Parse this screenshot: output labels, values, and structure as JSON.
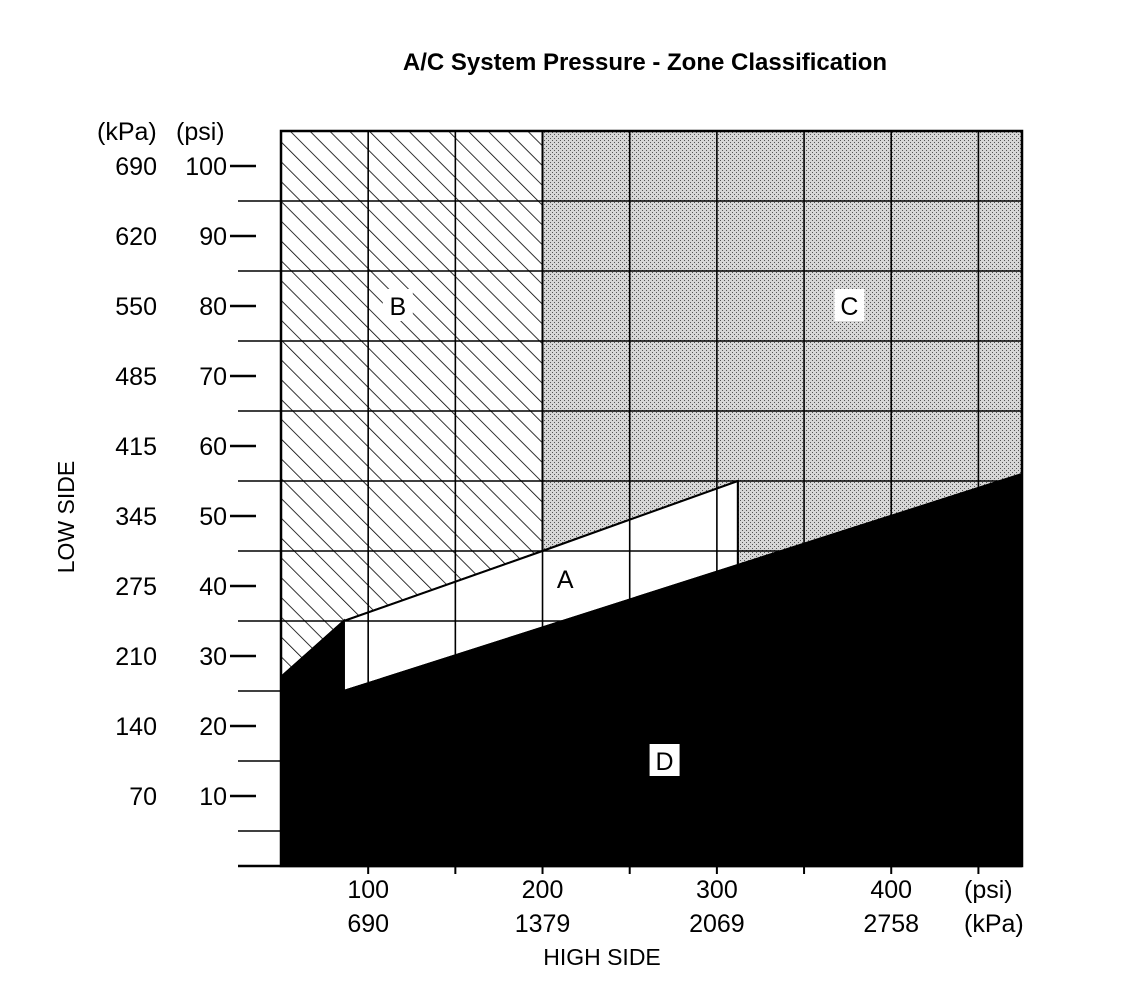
{
  "chart_data": {
    "type": "area",
    "title": "A/C System Pressure - Zone Classification",
    "xlabel": "HIGH SIDE",
    "ylabel": "LOW SIDE",
    "x_unit_primary": "(psi)",
    "x_unit_secondary": "(kPa)",
    "y_unit_primary": "(psi)",
    "y_unit_secondary": "(kPa)",
    "xlim": [
      50,
      475
    ],
    "ylim": [
      0,
      105
    ],
    "x_ticks": [
      {
        "psi": "100",
        "kpa": "690",
        "value": 100
      },
      {
        "psi": "200",
        "kpa": "1379",
        "value": 200
      },
      {
        "psi": "300",
        "kpa": "2069",
        "value": 300
      },
      {
        "psi": "400",
        "kpa": "2758",
        "value": 400
      }
    ],
    "y_ticks": [
      {
        "psi": "100",
        "kpa": "690",
        "value": 100
      },
      {
        "psi": "90",
        "kpa": "620",
        "value": 90
      },
      {
        "psi": "80",
        "kpa": "550",
        "value": 80
      },
      {
        "psi": "70",
        "kpa": "485",
        "value": 70
      },
      {
        "psi": "60",
        "kpa": "415",
        "value": 60
      },
      {
        "psi": "50",
        "kpa": "345",
        "value": 50
      },
      {
        "psi": "40",
        "kpa": "275",
        "value": 40
      },
      {
        "psi": "30",
        "kpa": "210",
        "value": 30
      },
      {
        "psi": "20",
        "kpa": "140",
        "value": 20
      },
      {
        "psi": "10",
        "kpa": "70",
        "value": 10
      }
    ],
    "x_gridlines": [
      100,
      150,
      200,
      250,
      300,
      350,
      400,
      450
    ],
    "y_gridlines": [
      5,
      15,
      25,
      35,
      45,
      55,
      65,
      75,
      85,
      95
    ],
    "zones": [
      {
        "name": "A",
        "fill": "white",
        "polygon": [
          [
            86,
            25
          ],
          [
            86,
            35
          ],
          [
            200,
            45
          ],
          [
            312,
            55
          ],
          [
            312,
            42
          ],
          [
            200,
            34
          ],
          [
            86,
            25
          ]
        ],
        "label_at": [
          213,
          41
        ]
      },
      {
        "name": "B",
        "fill": "diagonal-hatch",
        "polygon": [
          [
            50,
            105
          ],
          [
            200,
            105
          ],
          [
            200,
            45
          ],
          [
            86,
            35
          ],
          [
            50,
            27
          ]
        ],
        "label_at": [
          117,
          80
        ]
      },
      {
        "name": "C",
        "fill": "stipple",
        "polygon": [
          [
            200,
            105
          ],
          [
            475,
            105
          ],
          [
            475,
            56
          ],
          [
            312,
            42
          ],
          [
            312,
            55
          ],
          [
            200,
            45
          ]
        ],
        "label_at": [
          376,
          80
        ]
      },
      {
        "name": "D",
        "fill": "black",
        "polygon": [
          [
            50,
            0
          ],
          [
            475,
            0
          ],
          [
            475,
            56
          ],
          [
            86,
            25
          ],
          [
            86,
            35
          ],
          [
            50,
            27
          ]
        ],
        "label_at": [
          270,
          15
        ]
      }
    ]
  },
  "colors": {
    "ink": "#000000",
    "paper": "#ffffff",
    "stipple_bg": "#d6d6d6"
  }
}
